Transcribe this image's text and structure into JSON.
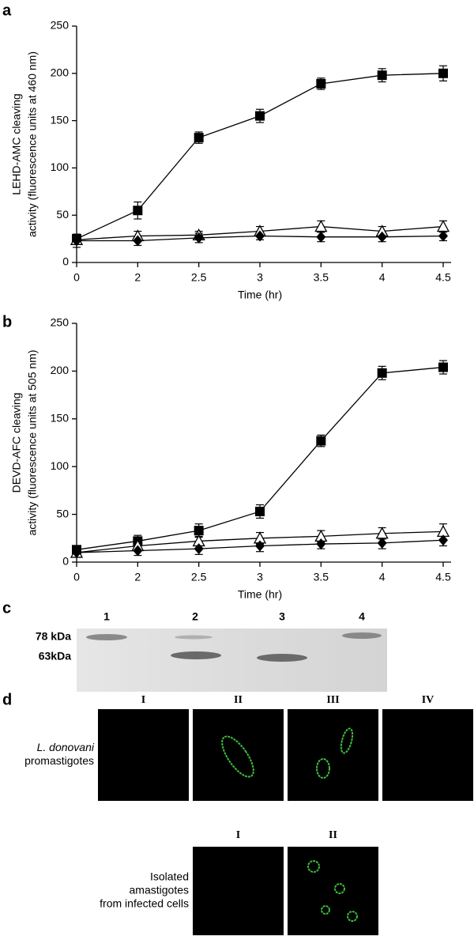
{
  "chart_data": [
    {
      "type": "line",
      "panel": "a",
      "ylabel": [
        "LEHD-AMC cleaving",
        "activity (fluorescence units at 460 nm)"
      ],
      "xlabel": "Time (hr)",
      "categories": [
        "0",
        "2",
        "2.5",
        "3",
        "3.5",
        "4",
        "4.5"
      ],
      "ylim": [
        0,
        250
      ],
      "yticks": [
        0,
        50,
        100,
        150,
        200,
        250
      ],
      "series": [
        {
          "marker": "square",
          "color": "#000000",
          "values": [
            25,
            55,
            132,
            155,
            189,
            198,
            200
          ],
          "errors": [
            5,
            9,
            6,
            7,
            6,
            7,
            8
          ]
        },
        {
          "marker": "triangle",
          "color": "#000000",
          "values": [
            24,
            28,
            29,
            33,
            38,
            33,
            38
          ],
          "errors": [
            4,
            5,
            4,
            5,
            6,
            5,
            6
          ]
        },
        {
          "marker": "diamond",
          "color": "#000000",
          "values": [
            23,
            23,
            26,
            28,
            27,
            27,
            28
          ],
          "errors": [
            7,
            5,
            5,
            4,
            5,
            5,
            5
          ]
        }
      ]
    },
    {
      "type": "line",
      "panel": "b",
      "ylabel": [
        "DEVD-AFC cleaving",
        "activity (fluorescence units at 505 nm)"
      ],
      "xlabel": "Time (hr)",
      "categories": [
        "0",
        "2",
        "2.5",
        "3",
        "3.5",
        "4",
        "4.5"
      ],
      "ylim": [
        0,
        250
      ],
      "yticks": [
        0,
        50,
        100,
        150,
        200,
        250
      ],
      "series": [
        {
          "marker": "square",
          "color": "#000000",
          "values": [
            13,
            22,
            33,
            53,
            127,
            198,
            204
          ],
          "errors": [
            4,
            6,
            7,
            7,
            6,
            7,
            7
          ]
        },
        {
          "marker": "triangle",
          "color": "#000000",
          "values": [
            10,
            17,
            22,
            25,
            27,
            30,
            32
          ],
          "errors": [
            3,
            5,
            5,
            6,
            6,
            6,
            8
          ]
        },
        {
          "marker": "diamond",
          "color": "#000000",
          "values": [
            10,
            12,
            14,
            17,
            19,
            20,
            23
          ],
          "errors": [
            4,
            5,
            6,
            6,
            5,
            6,
            6
          ]
        }
      ]
    }
  ],
  "gel": {
    "panel": "c",
    "lanes": [
      "1",
      "2",
      "3",
      "4"
    ],
    "markers": [
      "78 kDa",
      "63kDa"
    ]
  },
  "microscopy": {
    "panel": "d",
    "rows": [
      {
        "label": [
          "L. donovani",
          "promastigotes"
        ],
        "columns": [
          "I",
          "II",
          "III",
          "IV"
        ]
      },
      {
        "label": [
          "Isolated",
          "amastigotes",
          "from infected cells"
        ],
        "columns": [
          "I",
          "II"
        ]
      }
    ]
  }
}
